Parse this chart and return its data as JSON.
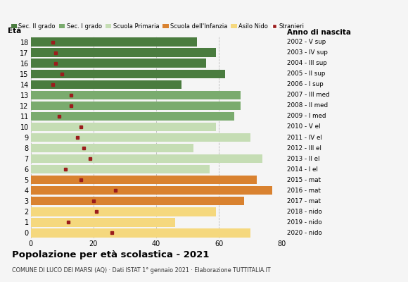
{
  "ages": [
    0,
    1,
    2,
    3,
    4,
    5,
    6,
    7,
    8,
    9,
    10,
    11,
    12,
    13,
    14,
    15,
    16,
    17,
    18
  ],
  "bar_values": [
    70,
    46,
    59,
    68,
    77,
    72,
    57,
    74,
    52,
    70,
    59,
    65,
    67,
    67,
    48,
    62,
    56,
    59,
    53
  ],
  "stranieri": [
    26,
    12,
    21,
    20,
    27,
    16,
    11,
    19,
    17,
    15,
    16,
    9,
    13,
    13,
    7,
    10,
    8,
    8,
    7
  ],
  "bar_colors": [
    "#f5d87e",
    "#f5d87e",
    "#f5d87e",
    "#d98230",
    "#d98230",
    "#d98230",
    "#c5ddb4",
    "#c5ddb4",
    "#c5ddb4",
    "#c5ddb4",
    "#c5ddb4",
    "#7aab6e",
    "#7aab6e",
    "#7aab6e",
    "#4a7c3f",
    "#4a7c3f",
    "#4a7c3f",
    "#4a7c3f",
    "#4a7c3f"
  ],
  "right_labels": [
    "2020 - nido",
    "2019 - nido",
    "2018 - nido",
    "2017 - mat",
    "2016 - mat",
    "2015 - mat",
    "2014 - I el",
    "2013 - II el",
    "2012 - III el",
    "2011 - IV el",
    "2010 - V el",
    "2009 - I med",
    "2008 - II med",
    "2007 - III med",
    "2006 - I sup",
    "2005 - II sup",
    "2004 - III sup",
    "2003 - IV sup",
    "2002 - V sup"
  ],
  "legend_labels": [
    "Sec. II grado",
    "Sec. I grado",
    "Scuola Primaria",
    "Scuola dell'Infanzia",
    "Asilo Nido",
    "Stranieri"
  ],
  "legend_colors": [
    "#4a7c3f",
    "#7aab6e",
    "#c5ddb4",
    "#d98230",
    "#f5d87e",
    "#9b1c1c"
  ],
  "title": "Popolazione per età scolastica - 2021",
  "subtitle": "COMUNE DI LUCO DEI MARSI (AQ) · Dati ISTAT 1° gennaio 2021 · Elaborazione TUTTITALIA.IT",
  "xlabel_left": "Età",
  "xlabel_right": "Anno di nascita",
  "stranieri_color": "#9b1c1c",
  "bg_color": "#f5f5f5",
  "xlim": [
    0,
    80
  ],
  "xticks": [
    0,
    20,
    40,
    60,
    80
  ]
}
